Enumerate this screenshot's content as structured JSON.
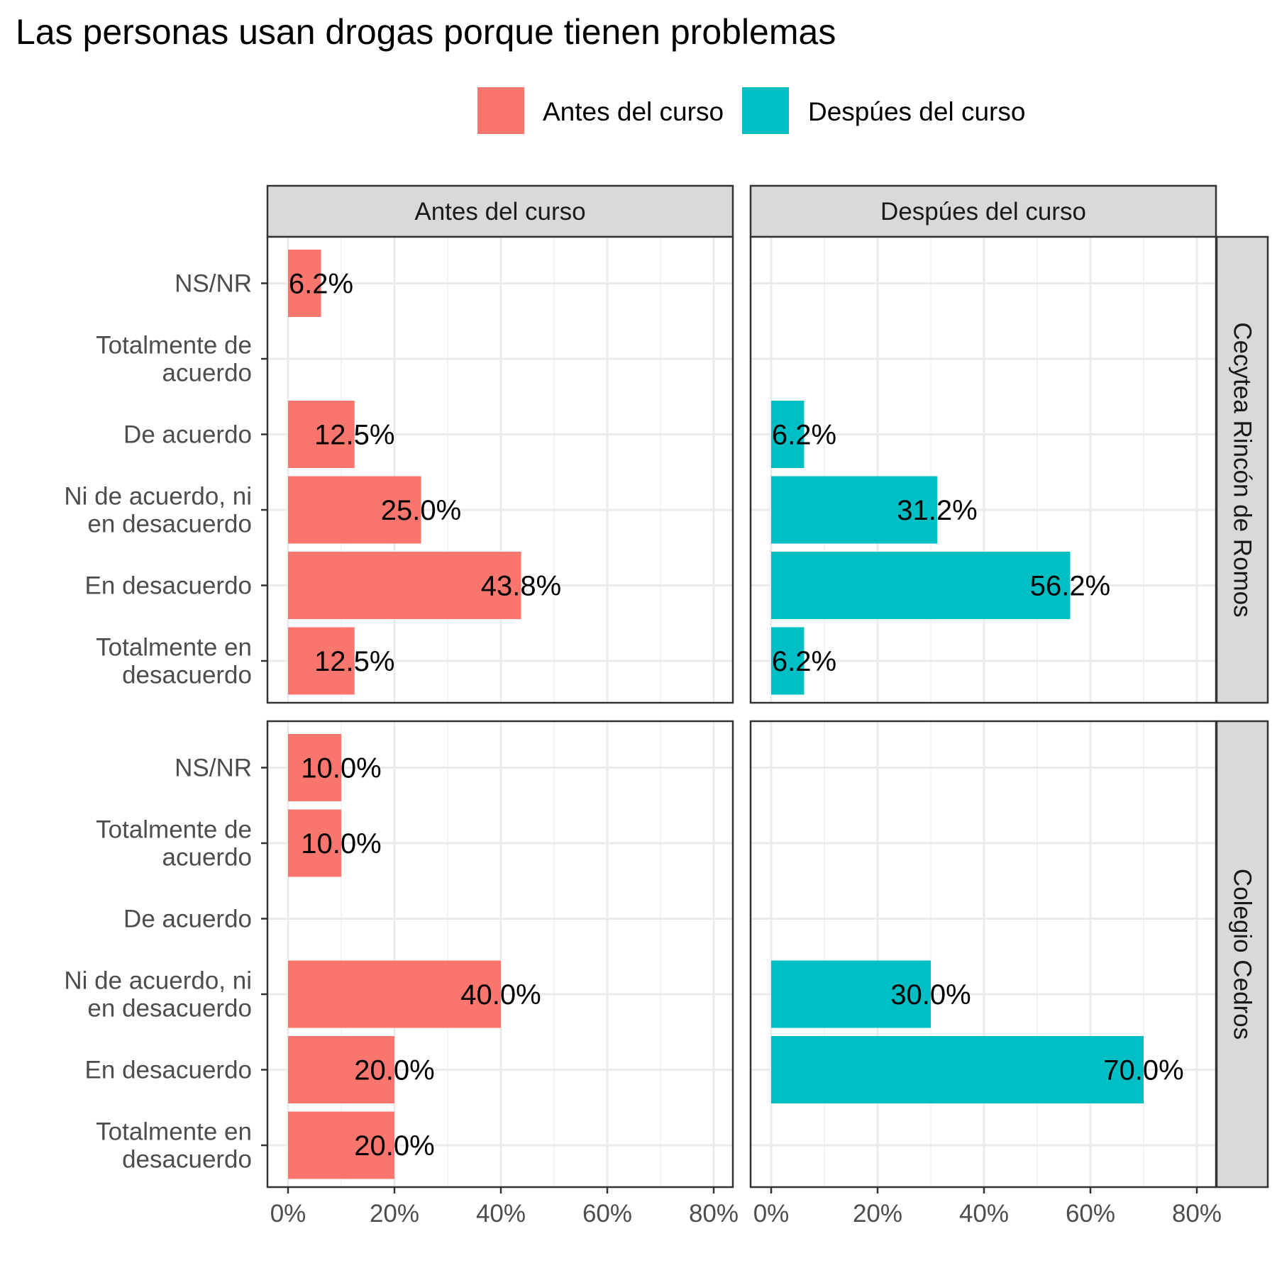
{
  "chart_data": {
    "type": "bar",
    "orientation": "horizontal",
    "title": "Las personas usan drogas porque tienen problemas",
    "legend": {
      "position": "top",
      "entries": [
        {
          "label": "Antes del curso",
          "color": "#F8766D"
        },
        {
          "label": "Despúes del curso",
          "color": "#00BFC4"
        }
      ]
    },
    "facet_columns": [
      "Antes del curso",
      "Despúes del curso"
    ],
    "facet_rows": [
      "Cecytea Rincón de Romos",
      "Colegio Cedros"
    ],
    "categories": [
      "NS/NR",
      "Totalmente de acuerdo",
      "De acuerdo",
      "Ni de acuerdo, ni en desacuerdo",
      "En desacuerdo",
      "Totalmente en desacuerdo"
    ],
    "category_label_lines": [
      [
        "NS/NR"
      ],
      [
        "Totalmente de",
        "acuerdo"
      ],
      [
        "De acuerdo"
      ],
      [
        "Ni de acuerdo, ni",
        "en desacuerdo"
      ],
      [
        "En desacuerdo"
      ],
      [
        "Totalmente en",
        "desacuerdo"
      ]
    ],
    "xlim": [
      0,
      80
    ],
    "x_ticks": [
      0,
      20,
      40,
      60,
      80
    ],
    "x_tick_labels": [
      "0%",
      "20%",
      "40%",
      "60%",
      "80%"
    ],
    "grid": true,
    "panels": [
      {
        "row": "Cecytea Rincón de Romos",
        "col": "Antes del curso",
        "values": [
          6.2,
          null,
          12.5,
          25.0,
          43.8,
          12.5
        ],
        "labels": [
          "6.2%",
          null,
          "12.5%",
          "25.0%",
          "43.8%",
          "12.5%"
        ]
      },
      {
        "row": "Cecytea Rincón de Romos",
        "col": "Despúes del curso",
        "values": [
          null,
          null,
          6.2,
          31.2,
          56.2,
          6.2
        ],
        "labels": [
          null,
          null,
          "6.2%",
          "31.2%",
          "56.2%",
          "6.2%"
        ]
      },
      {
        "row": "Colegio Cedros",
        "col": "Antes del curso",
        "values": [
          10.0,
          10.0,
          null,
          40.0,
          20.0,
          20.0
        ],
        "labels": [
          "10.0%",
          "10.0%",
          null,
          "40.0%",
          "20.0%",
          "20.0%"
        ]
      },
      {
        "row": "Colegio Cedros",
        "col": "Despúes del curso",
        "values": [
          null,
          null,
          null,
          30.0,
          70.0,
          null
        ],
        "labels": [
          null,
          null,
          null,
          "30.0%",
          "70.0%",
          null
        ]
      }
    ]
  }
}
